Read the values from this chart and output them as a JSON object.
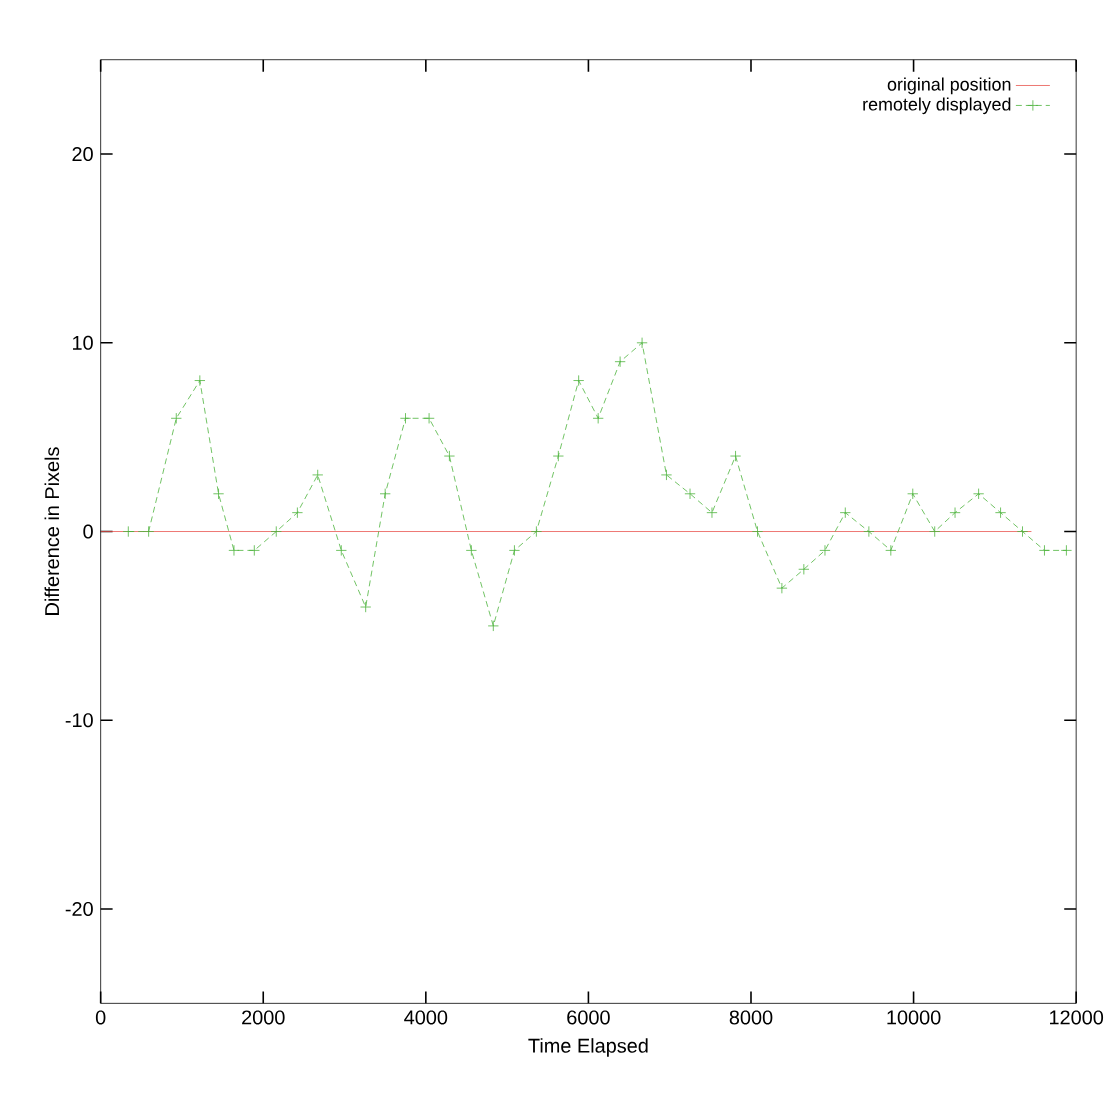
{
  "chart_data": {
    "type": "line",
    "xlabel": "Time Elapsed",
    "ylabel": "Difference in Pixels",
    "xlim": [
      0,
      12000
    ],
    "xticks": [
      0,
      2000,
      4000,
      6000,
      8000,
      10000,
      12000
    ],
    "ylim": [
      -25,
      25
    ],
    "yticks": [
      -20,
      -10,
      0,
      10,
      20
    ],
    "legend": "top right",
    "grid": false,
    "series": [
      {
        "name": "original position",
        "color": "#e8554e",
        "x": [
          0,
          11450
        ],
        "values": [
          0,
          0
        ],
        "marker": "none",
        "line_style": "solid"
      },
      {
        "name": "remotely displayed",
        "color": "#4db33d",
        "marker": "cross",
        "line_style": "dashed",
        "x": [
          340,
          590,
          930,
          1220,
          1450,
          1640,
          1890,
          2160,
          2420,
          2670,
          2960,
          3260,
          3500,
          3750,
          4040,
          4290,
          4560,
          4830,
          5090,
          5360,
          5630,
          5880,
          6120,
          6390,
          6660,
          6960,
          7250,
          7520,
          7810,
          8080,
          8380,
          8650,
          8910,
          9160,
          9450,
          9720,
          9990,
          10260,
          10510,
          10800,
          11070,
          11340,
          11610,
          11880
        ],
        "values": [
          0,
          0,
          6,
          8,
          2,
          -1,
          -1,
          0,
          1,
          3,
          -1,
          -4,
          2,
          6,
          6,
          4,
          -1,
          -5,
          -1,
          0,
          4,
          8,
          6,
          9,
          10,
          3,
          2,
          1,
          4,
          0,
          -3,
          -2,
          -1,
          1,
          0,
          -1,
          2,
          0,
          1,
          2,
          1,
          0,
          -1,
          -1
        ]
      }
    ]
  }
}
